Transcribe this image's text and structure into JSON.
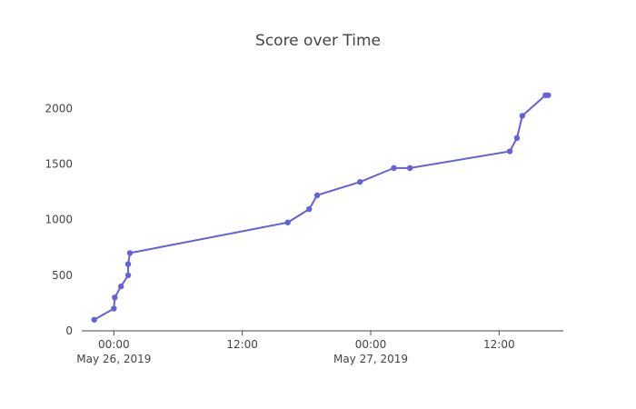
{
  "chart_data": {
    "type": "line",
    "title": "Score over Time",
    "xlabel": "",
    "ylabel": "",
    "xlim": [
      "2019-05-25 21:00",
      "2019-05-27 18:00"
    ],
    "ylim": [
      0,
      2200
    ],
    "yticks": [
      0,
      500,
      1000,
      1500,
      2000
    ],
    "ytick_labels": [
      "0",
      "500",
      "1000",
      "1500",
      "2000"
    ],
    "xticks": [
      {
        "t": "2019-05-26 00:00",
        "label": "00:00",
        "sublabel": "May 26, 2019"
      },
      {
        "t": "2019-05-26 12:00",
        "label": "12:00",
        "sublabel": ""
      },
      {
        "t": "2019-05-27 00:00",
        "label": "00:00",
        "sublabel": "May 27, 2019"
      },
      {
        "t": "2019-05-27 12:00",
        "label": "12:00",
        "sublabel": ""
      }
    ],
    "grid": false,
    "color": "#6362d8",
    "series": [
      {
        "points": [
          {
            "x": "2019-05-25 22:10",
            "y": 100
          },
          {
            "x": "2019-05-26 00:00",
            "y": 200
          },
          {
            "x": "2019-05-26 00:05",
            "y": 300
          },
          {
            "x": "2019-05-26 00:40",
            "y": 400
          },
          {
            "x": "2019-05-26 01:20",
            "y": 500
          },
          {
            "x": "2019-05-26 01:20",
            "y": 600
          },
          {
            "x": "2019-05-26 01:30",
            "y": 700
          },
          {
            "x": "2019-05-26 16:15",
            "y": 975
          },
          {
            "x": "2019-05-26 18:15",
            "y": 1095
          },
          {
            "x": "2019-05-26 19:00",
            "y": 1220
          },
          {
            "x": "2019-05-26 23:00",
            "y": 1340
          },
          {
            "x": "2019-05-27 02:10",
            "y": 1465
          },
          {
            "x": "2019-05-27 03:40",
            "y": 1465
          },
          {
            "x": "2019-05-27 13:00",
            "y": 1615
          },
          {
            "x": "2019-05-27 13:40",
            "y": 1735
          },
          {
            "x": "2019-05-27 14:10",
            "y": 1935
          },
          {
            "x": "2019-05-27 16:20",
            "y": 2120
          },
          {
            "x": "2019-05-27 16:35",
            "y": 2120
          }
        ]
      }
    ]
  }
}
